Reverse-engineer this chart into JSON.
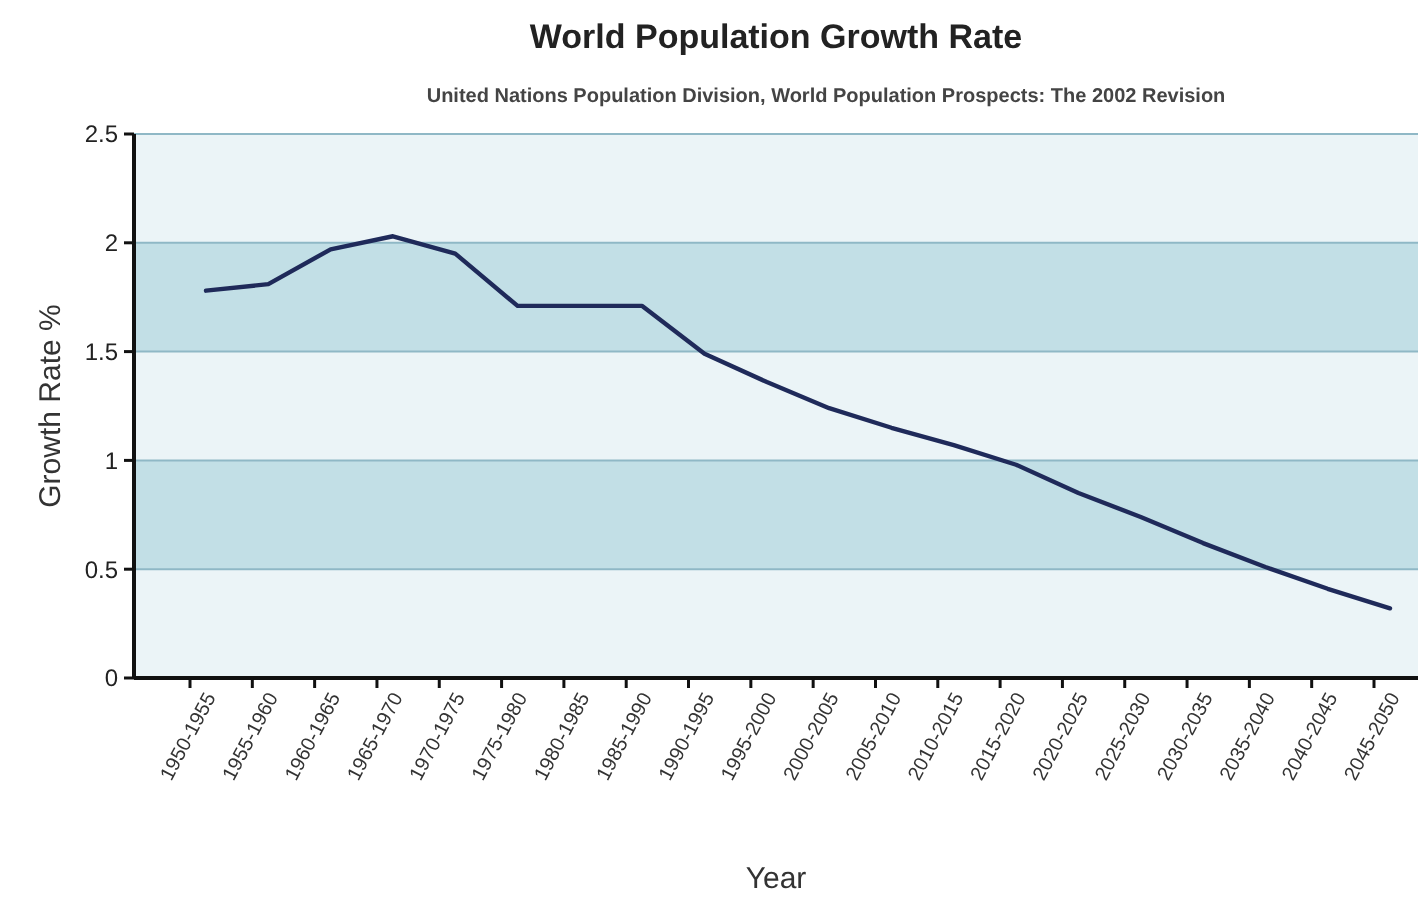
{
  "chart_data": {
    "type": "line",
    "title": "World Population Growth Rate",
    "subtitle": "United Nations Population Division, World Population Prospects: The 2002 Revision",
    "xlabel": "Year",
    "ylabel": "Growth Rate %",
    "categories": [
      "1950-1955",
      "1955-1960",
      "1960-1965",
      "1965-1970",
      "1970-1975",
      "1975-1980",
      "1980-1985",
      "1985-1990",
      "1990-1995",
      "1995-2000",
      "2000-2005",
      "2005-2010",
      "2010-2015",
      "2015-2020",
      "2020-2025",
      "2025-2030",
      "2030-2035",
      "2035-2040",
      "2040-2045",
      "2045-2050"
    ],
    "series": [
      {
        "color": "#1f2a5a",
        "values": [
          1.78,
          1.81,
          1.97,
          2.03,
          1.95,
          1.71,
          1.71,
          1.71,
          1.49,
          1.36,
          1.24,
          1.15,
          1.07,
          0.98,
          0.85,
          0.74,
          0.62,
          0.51,
          0.41,
          0.32
        ]
      }
    ],
    "ylim": [
      0,
      2.5
    ],
    "yticks": [
      0,
      0.5,
      1,
      1.5,
      2,
      2.5
    ],
    "grid": "y",
    "marker": "none",
    "line_style": "solid",
    "bands": [
      {
        "axis": "y",
        "from": 0.5,
        "to": 1,
        "color": "#c2dfe6"
      },
      {
        "axis": "y",
        "from": 1.5,
        "to": 2,
        "color": "#c2dfe6"
      }
    ]
  }
}
